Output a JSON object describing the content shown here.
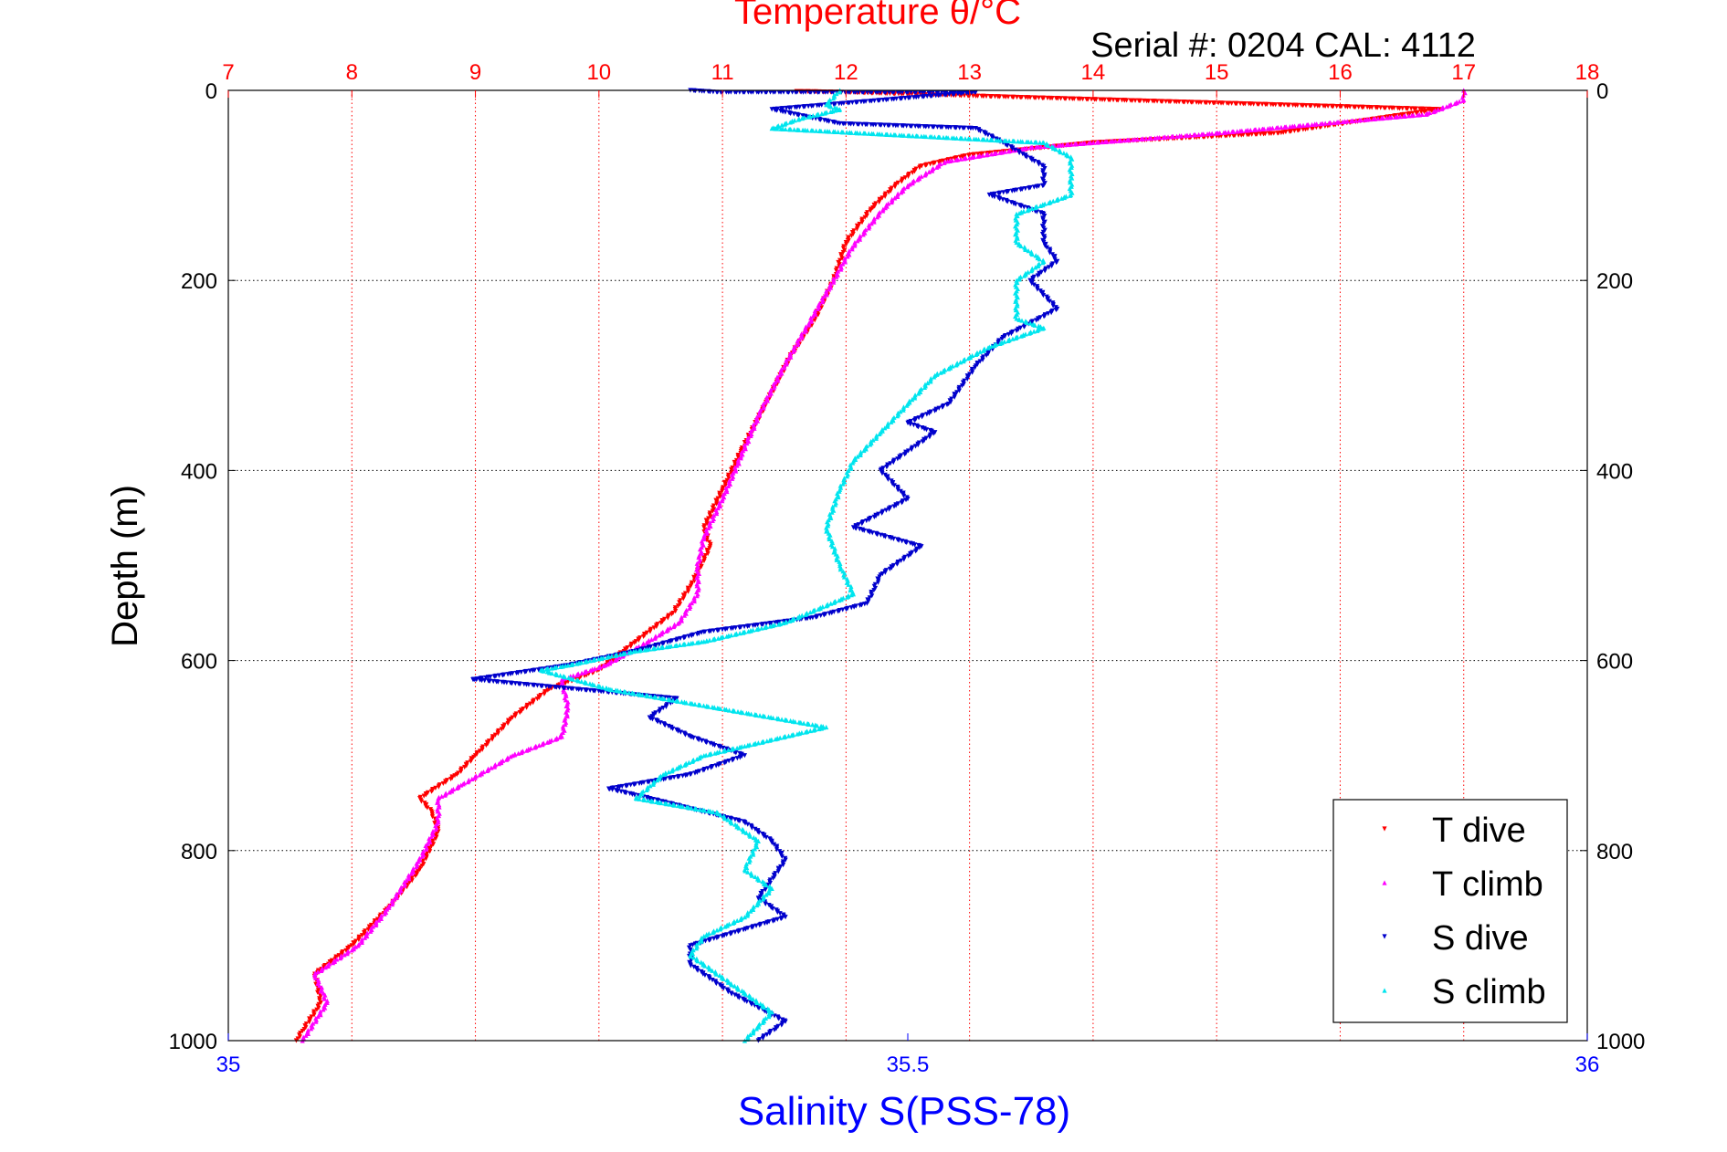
{
  "chart_data": {
    "type": "scatter",
    "title": "Temperature θ/°C",
    "header_text": "Serial #: 0204  CAL: 4112",
    "ylabel": "Depth (m)",
    "xlabel_bottom": "Salinity S(PSS-78)",
    "x_top": {
      "label": "Temperature θ/°C",
      "lim": [
        7,
        18
      ],
      "ticks": [
        "7",
        "8",
        "9",
        "10",
        "11",
        "12",
        "13",
        "14",
        "15",
        "16",
        "17",
        "18"
      ]
    },
    "x_bottom": {
      "label": "Salinity S(PSS-78)",
      "lim": [
        35,
        36
      ],
      "ticks": [
        "35",
        "35.5",
        "36"
      ]
    },
    "y": {
      "lim": [
        0,
        1000
      ],
      "reversed": true,
      "ticks": [
        "0",
        "200",
        "400",
        "600",
        "800",
        "1000"
      ]
    },
    "grid": true,
    "legend_position": "bottom-right",
    "series": [
      {
        "name": "T dive",
        "axis": "temperature",
        "color": "#ff0000",
        "marker": "triangle-down",
        "points": [
          [
            11.6,
            1
          ],
          [
            12.0,
            2
          ],
          [
            16.8,
            20
          ],
          [
            15.5,
            45
          ],
          [
            14.0,
            55
          ],
          [
            13.0,
            68
          ],
          [
            12.6,
            80
          ],
          [
            12.4,
            100
          ],
          [
            12.2,
            125
          ],
          [
            12.0,
            160
          ],
          [
            11.9,
            200
          ],
          [
            11.75,
            240
          ],
          [
            11.55,
            280
          ],
          [
            11.35,
            330
          ],
          [
            11.15,
            380
          ],
          [
            11.0,
            420
          ],
          [
            10.85,
            460
          ],
          [
            10.9,
            480
          ],
          [
            10.75,
            520
          ],
          [
            10.6,
            550
          ],
          [
            10.3,
            580
          ],
          [
            10.0,
            610
          ],
          [
            9.6,
            630
          ],
          [
            9.3,
            660
          ],
          [
            9.0,
            700
          ],
          [
            8.85,
            720
          ],
          [
            8.55,
            745
          ],
          [
            8.65,
            760
          ],
          [
            8.7,
            780
          ],
          [
            8.55,
            820
          ],
          [
            8.3,
            860
          ],
          [
            8.0,
            900
          ],
          [
            7.7,
            930
          ],
          [
            7.75,
            960
          ],
          [
            7.6,
            990
          ],
          [
            7.55,
            1000
          ]
        ]
      },
      {
        "name": "T climb",
        "axis": "temperature",
        "color": "#ff00ff",
        "marker": "triangle-up",
        "points": [
          [
            17.0,
            0
          ],
          [
            17.0,
            10
          ],
          [
            16.7,
            25
          ],
          [
            15.0,
            45
          ],
          [
            13.5,
            60
          ],
          [
            12.8,
            75
          ],
          [
            12.5,
            100
          ],
          [
            12.3,
            125
          ],
          [
            12.05,
            165
          ],
          [
            11.9,
            200
          ],
          [
            11.7,
            245
          ],
          [
            11.5,
            290
          ],
          [
            11.3,
            340
          ],
          [
            11.15,
            385
          ],
          [
            11.0,
            430
          ],
          [
            10.85,
            470
          ],
          [
            10.8,
            500
          ],
          [
            10.8,
            530
          ],
          [
            10.65,
            560
          ],
          [
            10.4,
            580
          ],
          [
            10.05,
            605
          ],
          [
            9.7,
            620
          ],
          [
            9.75,
            650
          ],
          [
            9.7,
            680
          ],
          [
            9.3,
            700
          ],
          [
            8.9,
            730
          ],
          [
            8.7,
            745
          ],
          [
            8.7,
            770
          ],
          [
            8.55,
            810
          ],
          [
            8.3,
            860
          ],
          [
            8.05,
            900
          ],
          [
            7.7,
            930
          ],
          [
            7.8,
            960
          ],
          [
            7.6,
            1000
          ]
        ]
      },
      {
        "name": "S dive",
        "axis": "salinity",
        "color": "#0000cc",
        "marker": "triangle-down",
        "points": [
          [
            35.34,
            0
          ],
          [
            35.36,
            2
          ],
          [
            35.55,
            2
          ],
          [
            35.4,
            20
          ],
          [
            35.45,
            35
          ],
          [
            35.55,
            40
          ],
          [
            35.57,
            55
          ],
          [
            35.6,
            80
          ],
          [
            35.6,
            100
          ],
          [
            35.56,
            110
          ],
          [
            35.6,
            130
          ],
          [
            35.6,
            160
          ],
          [
            35.61,
            180
          ],
          [
            35.59,
            200
          ],
          [
            35.61,
            230
          ],
          [
            35.57,
            260
          ],
          [
            35.55,
            290
          ],
          [
            35.53,
            330
          ],
          [
            35.5,
            350
          ],
          [
            35.52,
            360
          ],
          [
            35.48,
            400
          ],
          [
            35.5,
            430
          ],
          [
            35.46,
            460
          ],
          [
            35.51,
            480
          ],
          [
            35.48,
            510
          ],
          [
            35.47,
            540
          ],
          [
            35.43,
            555
          ],
          [
            35.35,
            570
          ],
          [
            35.3,
            590
          ],
          [
            35.25,
            605
          ],
          [
            35.18,
            620
          ],
          [
            35.33,
            640
          ],
          [
            35.31,
            660
          ],
          [
            35.34,
            680
          ],
          [
            35.38,
            700
          ],
          [
            35.34,
            720
          ],
          [
            35.28,
            735
          ],
          [
            35.31,
            745
          ],
          [
            35.38,
            770
          ],
          [
            35.4,
            790
          ],
          [
            35.41,
            810
          ],
          [
            35.39,
            850
          ],
          [
            35.41,
            870
          ],
          [
            35.34,
            900
          ],
          [
            35.34,
            920
          ],
          [
            35.37,
            950
          ],
          [
            35.41,
            980
          ],
          [
            35.39,
            1000
          ]
        ]
      },
      {
        "name": "S climb",
        "axis": "salinity",
        "color": "#00e5ee",
        "marker": "triangle-up",
        "points": [
          [
            35.45,
            0
          ],
          [
            35.44,
            15
          ],
          [
            35.45,
            20
          ],
          [
            35.42,
            30
          ],
          [
            35.4,
            40
          ],
          [
            35.6,
            55
          ],
          [
            35.62,
            70
          ],
          [
            35.62,
            90
          ],
          [
            35.62,
            110
          ],
          [
            35.58,
            130
          ],
          [
            35.58,
            160
          ],
          [
            35.6,
            180
          ],
          [
            35.58,
            200
          ],
          [
            35.58,
            240
          ],
          [
            35.6,
            250
          ],
          [
            35.56,
            270
          ],
          [
            35.52,
            300
          ],
          [
            35.5,
            330
          ],
          [
            35.48,
            360
          ],
          [
            35.46,
            390
          ],
          [
            35.45,
            420
          ],
          [
            35.44,
            460
          ],
          [
            35.45,
            500
          ],
          [
            35.46,
            530
          ],
          [
            35.41,
            560
          ],
          [
            35.35,
            580
          ],
          [
            35.3,
            590
          ],
          [
            35.25,
            605
          ],
          [
            35.23,
            610
          ],
          [
            35.28,
            630
          ],
          [
            35.36,
            650
          ],
          [
            35.44,
            670
          ],
          [
            35.38,
            690
          ],
          [
            35.35,
            700
          ],
          [
            35.32,
            720
          ],
          [
            35.3,
            745
          ],
          [
            35.36,
            760
          ],
          [
            35.39,
            790
          ],
          [
            35.38,
            820
          ],
          [
            35.4,
            840
          ],
          [
            35.38,
            870
          ],
          [
            35.35,
            890
          ],
          [
            35.34,
            910
          ],
          [
            35.37,
            940
          ],
          [
            35.4,
            970
          ],
          [
            35.38,
            1000
          ]
        ]
      }
    ]
  },
  "colors": {
    "temperature_axis": "#ff0000",
    "salinity_axis": "#0000ff",
    "header_text": "#000000",
    "grid_temperature": "#ff0000",
    "grid_depth": "#000000"
  }
}
